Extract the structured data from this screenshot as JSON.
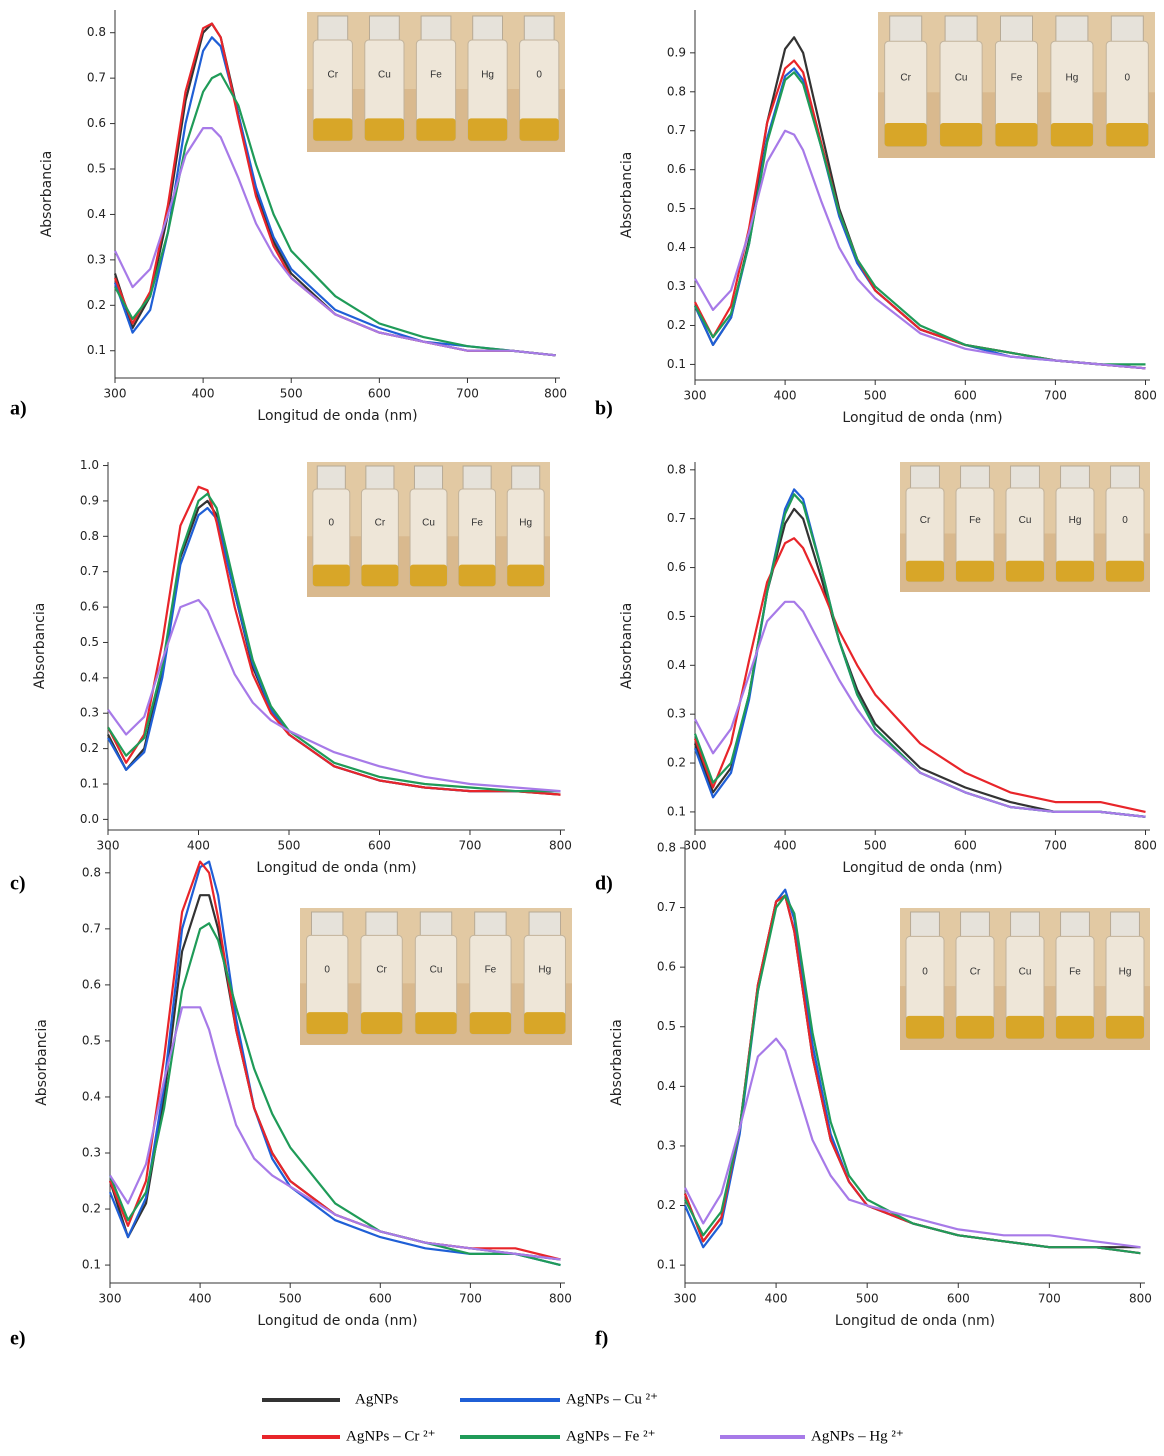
{
  "chart_data": [
    {
      "type": "line",
      "label": "a)",
      "x_label": "Longitud de onda (nm)",
      "y_label": "Absorbancia",
      "inset_labels": [
        "Cr",
        "Cu",
        "Fe",
        "Hg",
        "0"
      ],
      "x": [
        300,
        320,
        340,
        360,
        380,
        400,
        410,
        420,
        440,
        460,
        480,
        500,
        550,
        600,
        650,
        700,
        750,
        800
      ],
      "xlim": [
        300,
        805
      ],
      "xticks": [
        300,
        400,
        500,
        600,
        700,
        800
      ],
      "ylim": [
        0.04,
        0.85
      ],
      "yticks": [
        0.1,
        0.2,
        0.3,
        0.4,
        0.5,
        0.6,
        0.7,
        0.8
      ],
      "series": [
        {
          "name": "AgNPs",
          "color": "#333333",
          "values": [
            0.27,
            0.15,
            0.22,
            0.4,
            0.65,
            0.8,
            0.82,
            0.79,
            0.62,
            0.45,
            0.34,
            0.27,
            0.18,
            0.14,
            0.12,
            0.1,
            0.1,
            0.09
          ]
        },
        {
          "name": "AgNPs – Cu ²⁺",
          "color": "#1f5fd6",
          "values": [
            0.25,
            0.14,
            0.19,
            0.36,
            0.6,
            0.76,
            0.79,
            0.77,
            0.62,
            0.46,
            0.35,
            0.28,
            0.19,
            0.15,
            0.12,
            0.11,
            0.1,
            0.09
          ]
        },
        {
          "name": "AgNPs – Cr ²⁺",
          "color": "#e8252a",
          "values": [
            0.26,
            0.16,
            0.23,
            0.42,
            0.67,
            0.81,
            0.82,
            0.79,
            0.61,
            0.44,
            0.33,
            0.26,
            0.18,
            0.14,
            0.12,
            0.1,
            0.1,
            0.09
          ]
        },
        {
          "name": "AgNPs – Fe ²⁺",
          "color": "#1f9b58",
          "values": [
            0.24,
            0.17,
            0.22,
            0.36,
            0.55,
            0.67,
            0.7,
            0.71,
            0.64,
            0.51,
            0.4,
            0.32,
            0.22,
            0.16,
            0.13,
            0.11,
            0.1,
            0.09
          ]
        },
        {
          "name": "AgNPs – Hg ²⁺",
          "color": "#a77ae8",
          "values": [
            0.32,
            0.24,
            0.28,
            0.4,
            0.53,
            0.59,
            0.59,
            0.57,
            0.48,
            0.38,
            0.31,
            0.26,
            0.18,
            0.14,
            0.12,
            0.1,
            0.1,
            0.09
          ]
        }
      ]
    },
    {
      "type": "line",
      "label": "b)",
      "x_label": "Longitud de onda (nm)",
      "y_label": "Absorbancia",
      "inset_labels": [
        "Cr",
        "Cu",
        "Fe",
        "Hg",
        "0"
      ],
      "x": [
        300,
        320,
        340,
        360,
        380,
        400,
        410,
        420,
        440,
        460,
        480,
        500,
        550,
        600,
        650,
        700,
        750,
        800
      ],
      "xlim": [
        300,
        805
      ],
      "xticks": [
        300,
        400,
        500,
        600,
        700,
        800
      ],
      "ylim": [
        0.06,
        1.01
      ],
      "yticks": [
        0.1,
        0.2,
        0.3,
        0.4,
        0.5,
        0.6,
        0.7,
        0.8,
        0.9
      ],
      "series": [
        {
          "name": "AgNPs",
          "color": "#333333",
          "values": [
            0.25,
            0.15,
            0.22,
            0.42,
            0.72,
            0.91,
            0.94,
            0.9,
            0.7,
            0.5,
            0.37,
            0.29,
            0.19,
            0.15,
            0.13,
            0.11,
            0.1,
            0.09
          ]
        },
        {
          "name": "AgNPs – Cu ²⁺",
          "color": "#1f5fd6",
          "values": [
            0.25,
            0.15,
            0.22,
            0.41,
            0.68,
            0.84,
            0.86,
            0.83,
            0.66,
            0.48,
            0.36,
            0.29,
            0.19,
            0.15,
            0.12,
            0.11,
            0.1,
            0.09
          ]
        },
        {
          "name": "AgNPs – Cr ²⁺",
          "color": "#e8252a",
          "values": [
            0.26,
            0.17,
            0.25,
            0.45,
            0.72,
            0.86,
            0.88,
            0.85,
            0.67,
            0.49,
            0.37,
            0.29,
            0.19,
            0.15,
            0.13,
            0.11,
            0.1,
            0.09
          ]
        },
        {
          "name": "AgNPs – Fe ²⁺",
          "color": "#1f9b58",
          "values": [
            0.25,
            0.17,
            0.23,
            0.41,
            0.67,
            0.83,
            0.85,
            0.82,
            0.66,
            0.49,
            0.37,
            0.3,
            0.2,
            0.15,
            0.13,
            0.11,
            0.1,
            0.1
          ]
        },
        {
          "name": "AgNPs – Hg ²⁺",
          "color": "#a77ae8",
          "values": [
            0.32,
            0.24,
            0.29,
            0.44,
            0.62,
            0.7,
            0.69,
            0.65,
            0.52,
            0.4,
            0.32,
            0.27,
            0.18,
            0.14,
            0.12,
            0.11,
            0.1,
            0.09
          ]
        }
      ]
    },
    {
      "type": "line",
      "label": "c)",
      "x_label": "Longitud de onda (nm)",
      "y_label": "Absorbancia",
      "inset_labels": [
        "0",
        "Cr",
        "Cu",
        "Fe",
        "Hg"
      ],
      "x": [
        300,
        320,
        340,
        360,
        380,
        400,
        410,
        420,
        440,
        460,
        480,
        500,
        550,
        600,
        650,
        700,
        750,
        800
      ],
      "xlim": [
        300,
        805
      ],
      "xticks": [
        300,
        400,
        500,
        600,
        700,
        800
      ],
      "ylim": [
        -0.03,
        1.01
      ],
      "yticks": [
        {
          "value": 0,
          "label": "0.0"
        },
        0.1,
        0.2,
        0.3,
        0.4,
        0.5,
        0.6,
        0.7,
        0.8,
        0.9,
        {
          "value": 1,
          "label": "1.0"
        }
      ],
      "series": [
        {
          "name": "AgNPs",
          "color": "#333333",
          "values": [
            0.24,
            0.14,
            0.2,
            0.42,
            0.74,
            0.88,
            0.9,
            0.86,
            0.64,
            0.43,
            0.31,
            0.24,
            0.15,
            0.11,
            0.09,
            0.08,
            0.08,
            0.07
          ]
        },
        {
          "name": "AgNPs – Cu ²⁺",
          "color": "#1f5fd6",
          "values": [
            0.23,
            0.14,
            0.19,
            0.4,
            0.72,
            0.86,
            0.88,
            0.85,
            0.64,
            0.44,
            0.31,
            0.24,
            0.15,
            0.11,
            0.09,
            0.08,
            0.08,
            0.08
          ]
        },
        {
          "name": "AgNPs – Cr ²⁺",
          "color": "#e8252a",
          "values": [
            0.26,
            0.16,
            0.24,
            0.5,
            0.83,
            0.94,
            0.93,
            0.84,
            0.6,
            0.41,
            0.3,
            0.24,
            0.15,
            0.11,
            0.09,
            0.08,
            0.08,
            0.07
          ]
        },
        {
          "name": "AgNPs – Fe ²⁺",
          "color": "#1f9b58",
          "values": [
            0.26,
            0.18,
            0.23,
            0.43,
            0.75,
            0.9,
            0.92,
            0.88,
            0.66,
            0.45,
            0.32,
            0.25,
            0.16,
            0.12,
            0.1,
            0.09,
            0.08,
            0.08
          ]
        },
        {
          "name": "AgNPs – Hg ²⁺",
          "color": "#a77ae8",
          "values": [
            0.31,
            0.24,
            0.29,
            0.45,
            0.6,
            0.62,
            0.59,
            0.53,
            0.41,
            0.33,
            0.28,
            0.25,
            0.19,
            0.15,
            0.12,
            0.1,
            0.09,
            0.08
          ]
        }
      ]
    },
    {
      "type": "line",
      "label": "d)",
      "x_label": "Longitud de onda (nm)",
      "y_label": "Absorbancia",
      "inset_labels": [
        "Cr",
        "Fe",
        "Cu",
        "Hg",
        "0"
      ],
      "x": [
        300,
        320,
        340,
        360,
        380,
        400,
        410,
        420,
        440,
        460,
        480,
        500,
        550,
        600,
        650,
        700,
        750,
        800
      ],
      "xlim": [
        300,
        805
      ],
      "xticks": [
        300,
        400,
        500,
        600,
        700,
        800
      ],
      "ylim": [
        0.063,
        0.816
      ],
      "yticks": [
        0.1,
        0.2,
        0.3,
        0.4,
        0.5,
        0.6,
        0.7,
        0.8
      ],
      "series": [
        {
          "name": "AgNPs",
          "color": "#333333",
          "values": [
            0.24,
            0.14,
            0.19,
            0.34,
            0.55,
            0.69,
            0.72,
            0.7,
            0.58,
            0.45,
            0.35,
            0.28,
            0.19,
            0.15,
            0.12,
            0.1,
            0.1,
            0.09
          ]
        },
        {
          "name": "AgNPs – Cu ²⁺",
          "color": "#1f5fd6",
          "values": [
            0.23,
            0.13,
            0.18,
            0.33,
            0.55,
            0.72,
            0.76,
            0.74,
            0.6,
            0.45,
            0.34,
            0.27,
            0.18,
            0.14,
            0.11,
            0.1,
            0.1,
            0.09
          ]
        },
        {
          "name": "AgNPs – Cr ²⁺",
          "color": "#e8252a",
          "values": [
            0.25,
            0.15,
            0.24,
            0.41,
            0.57,
            0.65,
            0.66,
            0.64,
            0.56,
            0.47,
            0.4,
            0.34,
            0.24,
            0.18,
            0.14,
            0.12,
            0.12,
            0.1
          ]
        },
        {
          "name": "AgNPs – Fe ²⁺",
          "color": "#1f9b58",
          "values": [
            0.26,
            0.16,
            0.2,
            0.34,
            0.55,
            0.71,
            0.75,
            0.73,
            0.6,
            0.45,
            0.34,
            0.27,
            0.18,
            0.14,
            0.11,
            0.1,
            0.1,
            0.09
          ]
        },
        {
          "name": "AgNPs – Hg ²⁺",
          "color": "#a77ae8",
          "values": [
            0.29,
            0.22,
            0.27,
            0.38,
            0.49,
            0.53,
            0.53,
            0.51,
            0.44,
            0.37,
            0.31,
            0.26,
            0.18,
            0.14,
            0.11,
            0.1,
            0.1,
            0.09
          ]
        }
      ]
    },
    {
      "type": "line",
      "label": "e)",
      "x_label": "Longitud de onda (nm)",
      "y_label": "Absorbancia",
      "inset_labels": [
        "0",
        "Cr",
        "Cu",
        "Fe",
        "Hg"
      ],
      "x": [
        300,
        320,
        340,
        360,
        380,
        400,
        410,
        420,
        440,
        460,
        480,
        500,
        550,
        600,
        650,
        700,
        750,
        800
      ],
      "xlim": [
        300,
        805
      ],
      "xticks": [
        300,
        400,
        500,
        600,
        700,
        800
      ],
      "ylim": [
        0.068,
        0.855
      ],
      "yticks": [
        0.1,
        0.2,
        0.3,
        0.4,
        0.5,
        0.6,
        0.7,
        0.8
      ],
      "series": [
        {
          "name": "AgNPs",
          "color": "#333333",
          "values": [
            0.25,
            0.15,
            0.21,
            0.4,
            0.66,
            0.76,
            0.76,
            0.7,
            0.52,
            0.38,
            0.3,
            0.25,
            0.19,
            0.16,
            0.14,
            0.13,
            0.12,
            0.11
          ]
        },
        {
          "name": "AgNPs – Cu ²⁺",
          "color": "#1f5fd6",
          "values": [
            0.23,
            0.15,
            0.22,
            0.42,
            0.7,
            0.81,
            0.82,
            0.76,
            0.54,
            0.38,
            0.29,
            0.24,
            0.18,
            0.15,
            0.13,
            0.12,
            0.12,
            0.1
          ]
        },
        {
          "name": "AgNPs – Cr ²⁺",
          "color": "#e8252a",
          "values": [
            0.25,
            0.17,
            0.25,
            0.47,
            0.73,
            0.82,
            0.8,
            0.72,
            0.52,
            0.38,
            0.3,
            0.25,
            0.19,
            0.16,
            0.14,
            0.13,
            0.13,
            0.11
          ]
        },
        {
          "name": "AgNPs – Fe ²⁺",
          "color": "#1f9b58",
          "values": [
            0.26,
            0.18,
            0.23,
            0.38,
            0.59,
            0.7,
            0.71,
            0.68,
            0.56,
            0.45,
            0.37,
            0.31,
            0.21,
            0.16,
            0.14,
            0.12,
            0.12,
            0.1
          ]
        },
        {
          "name": "AgNPs – Hg ²⁺",
          "color": "#a77ae8",
          "values": [
            0.26,
            0.21,
            0.28,
            0.43,
            0.56,
            0.56,
            0.52,
            0.46,
            0.35,
            0.29,
            0.26,
            0.24,
            0.19,
            0.16,
            0.14,
            0.13,
            0.12,
            0.11
          ]
        }
      ]
    },
    {
      "type": "line",
      "label": "f)",
      "x_label": "Longitud de onda (nm)",
      "y_label": "Absorbancia",
      "inset_labels": [
        "0",
        "Cr",
        "Cu",
        "Fe",
        "Hg"
      ],
      "x": [
        300,
        320,
        340,
        360,
        380,
        400,
        410,
        420,
        440,
        460,
        480,
        500,
        550,
        600,
        650,
        700,
        750,
        800
      ],
      "xlim": [
        300,
        805
      ],
      "xticks": [
        300,
        400,
        500,
        600,
        700,
        800
      ],
      "ylim": [
        0.07,
        0.81
      ],
      "yticks": [
        0.1,
        0.2,
        0.3,
        0.4,
        0.5,
        0.6,
        0.7,
        0.8
      ],
      "series": [
        {
          "name": "AgNPs",
          "color": "#333333",
          "values": [
            0.22,
            0.14,
            0.18,
            0.33,
            0.57,
            0.71,
            0.72,
            0.66,
            0.45,
            0.31,
            0.24,
            0.2,
            0.17,
            0.15,
            0.14,
            0.13,
            0.13,
            0.13
          ]
        },
        {
          "name": "AgNPs – Cu ²⁺",
          "color": "#1f5fd6",
          "values": [
            0.2,
            0.13,
            0.17,
            0.32,
            0.56,
            0.71,
            0.73,
            0.68,
            0.47,
            0.32,
            0.24,
            0.2,
            0.17,
            0.15,
            0.14,
            0.13,
            0.13,
            0.12
          ]
        },
        {
          "name": "AgNPs – Cr ²⁺",
          "color": "#e8252a",
          "values": [
            0.22,
            0.14,
            0.18,
            0.33,
            0.57,
            0.71,
            0.72,
            0.66,
            0.45,
            0.31,
            0.24,
            0.2,
            0.17,
            0.15,
            0.14,
            0.13,
            0.13,
            0.12
          ]
        },
        {
          "name": "AgNPs – Fe ²⁺",
          "color": "#1f9b58",
          "values": [
            0.21,
            0.15,
            0.19,
            0.33,
            0.56,
            0.7,
            0.72,
            0.69,
            0.49,
            0.34,
            0.25,
            0.21,
            0.17,
            0.15,
            0.14,
            0.13,
            0.13,
            0.12
          ]
        },
        {
          "name": "AgNPs – Hg ²⁺",
          "color": "#a77ae8",
          "values": [
            0.23,
            0.17,
            0.22,
            0.33,
            0.45,
            0.48,
            0.46,
            0.41,
            0.31,
            0.25,
            0.21,
            0.2,
            0.18,
            0.16,
            0.15,
            0.15,
            0.14,
            0.13
          ]
        }
      ]
    }
  ]
}
